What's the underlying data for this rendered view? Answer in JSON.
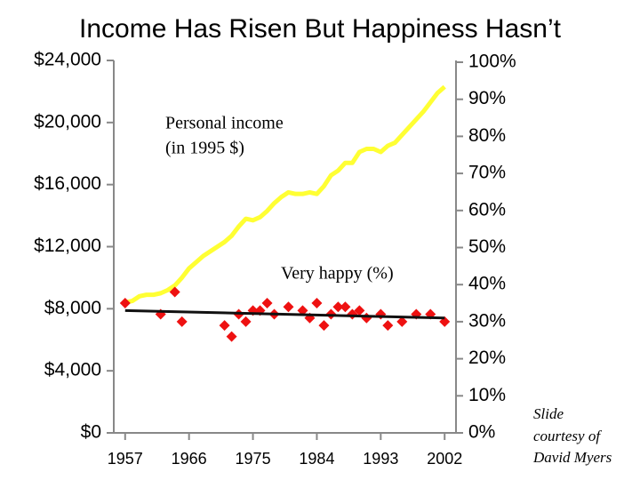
{
  "chart_data": {
    "type": "line",
    "title": "Income Has Risen But Happiness Hasn’t",
    "annotations": {
      "income": [
        "Personal income",
        "(in 1995 $)"
      ],
      "happy": "Very happy (%)",
      "credit": [
        "Slide",
        "courtesy of",
        "David Myers"
      ]
    },
    "xlim": [
      1955.4,
      2003.6
    ],
    "xticks": [
      1957,
      1966,
      1975,
      1984,
      1993,
      2002
    ],
    "ylim": [
      0,
      24000
    ],
    "yticks": [
      {
        "value": 0,
        "label": "$0"
      },
      {
        "value": 4000,
        "label": "$4,000"
      },
      {
        "value": 8000,
        "label": "$8,000"
      },
      {
        "value": 12000,
        "label": "$12,000"
      },
      {
        "value": 16000,
        "label": "$16,000"
      },
      {
        "value": 20000,
        "label": "$20,000"
      },
      {
        "value": 24000,
        "label": "$24,000"
      }
    ],
    "y2lim": [
      0,
      100
    ],
    "y2ticks": [
      {
        "value": 0,
        "label": "0%"
      },
      {
        "value": 10,
        "label": "10%"
      },
      {
        "value": 20,
        "label": "20%"
      },
      {
        "value": 30,
        "label": "30%"
      },
      {
        "value": 40,
        "label": "40%"
      },
      {
        "value": 50,
        "label": "50%"
      },
      {
        "value": 60,
        "label": "60%"
      },
      {
        "value": 70,
        "label": "70%"
      },
      {
        "value": 80,
        "label": "80%"
      },
      {
        "value": 90,
        "label": "90%"
      },
      {
        "value": 100,
        "label": "100%"
      }
    ],
    "series": [
      {
        "type": "line",
        "color": "#ffff33",
        "axis": "y",
        "x": [
          1957,
          1958,
          1959,
          1960,
          1961,
          1962,
          1963,
          1964,
          1965,
          1966,
          1967,
          1968,
          1969,
          1970,
          1971,
          1972,
          1973,
          1974,
          1975,
          1976,
          1977,
          1978,
          1979,
          1980,
          1981,
          1982,
          1983,
          1984,
          1985,
          1986,
          1987,
          1988,
          1989,
          1990,
          1991,
          1992,
          1993,
          1994,
          1995,
          1996,
          1997,
          1998,
          1999,
          2000,
          2001,
          2002
        ],
        "values": [
          8400,
          8500,
          8800,
          8900,
          8900,
          9000,
          9200,
          9500,
          10000,
          10600,
          11000,
          11400,
          11700,
          12000,
          12300,
          12700,
          13300,
          13800,
          13700,
          13900,
          14300,
          14800,
          15200,
          15500,
          15400,
          15400,
          15500,
          15400,
          15900,
          16600,
          16900,
          17400,
          17400,
          18100,
          18300,
          18300,
          18100,
          18500,
          18700,
          19200,
          19700,
          20200,
          20700,
          21300,
          21900,
          22300
        ]
      },
      {
        "type": "scatter",
        "color": "#ee1111",
        "axis": "y2",
        "x": [
          1957,
          1962,
          1964,
          1965,
          1971,
          1972,
          1973,
          1974,
          1975,
          1976,
          1977,
          1978,
          1980,
          1982,
          1983,
          1984,
          1985,
          1986,
          1987,
          1988,
          1989,
          1990,
          1991,
          1993,
          1994,
          1996,
          1998,
          2000,
          2002
        ],
        "values": [
          35,
          32,
          38,
          30,
          29,
          26,
          32,
          30,
          33,
          33,
          35,
          32,
          34,
          33,
          31,
          35,
          29,
          32,
          34,
          34,
          32,
          33,
          31,
          32,
          29,
          30,
          32,
          32,
          30
        ]
      },
      {
        "type": "line",
        "color": "#111111",
        "axis": "y2",
        "x": [
          1957,
          2002
        ],
        "values": [
          33,
          31
        ]
      }
    ]
  }
}
